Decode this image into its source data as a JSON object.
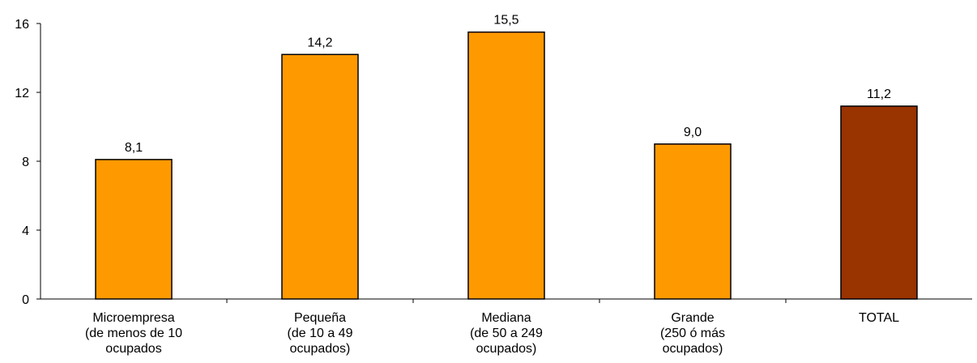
{
  "chart_data": {
    "type": "bar",
    "title": "",
    "xlabel": "",
    "ylabel": "",
    "categories": [
      [
        "Microempresa",
        "(de menos de 10",
        "ocupados"
      ],
      [
        "Pequeña",
        "(de 10 a 49",
        "ocupados)"
      ],
      [
        "Mediana",
        "(de 50 a 249",
        "ocupados)"
      ],
      [
        "Grande",
        "(250 ó más",
        "ocupados)"
      ],
      [
        "TOTAL"
      ]
    ],
    "values": [
      8.1,
      14.2,
      15.5,
      9.0,
      11.2
    ],
    "value_labels": [
      "8,1",
      "14,2",
      "15,5",
      "9,0",
      "11,2"
    ],
    "bar_colors": [
      "#FF9900",
      "#FF9900",
      "#FF9900",
      "#FF9900",
      "#993300"
    ],
    "ylim": [
      0,
      16
    ],
    "yticks": [
      0,
      4,
      8,
      12,
      16
    ],
    "ytick_labels": [
      "0",
      "4",
      "8",
      "12",
      "16"
    ],
    "grid": false,
    "legend": "none"
  }
}
